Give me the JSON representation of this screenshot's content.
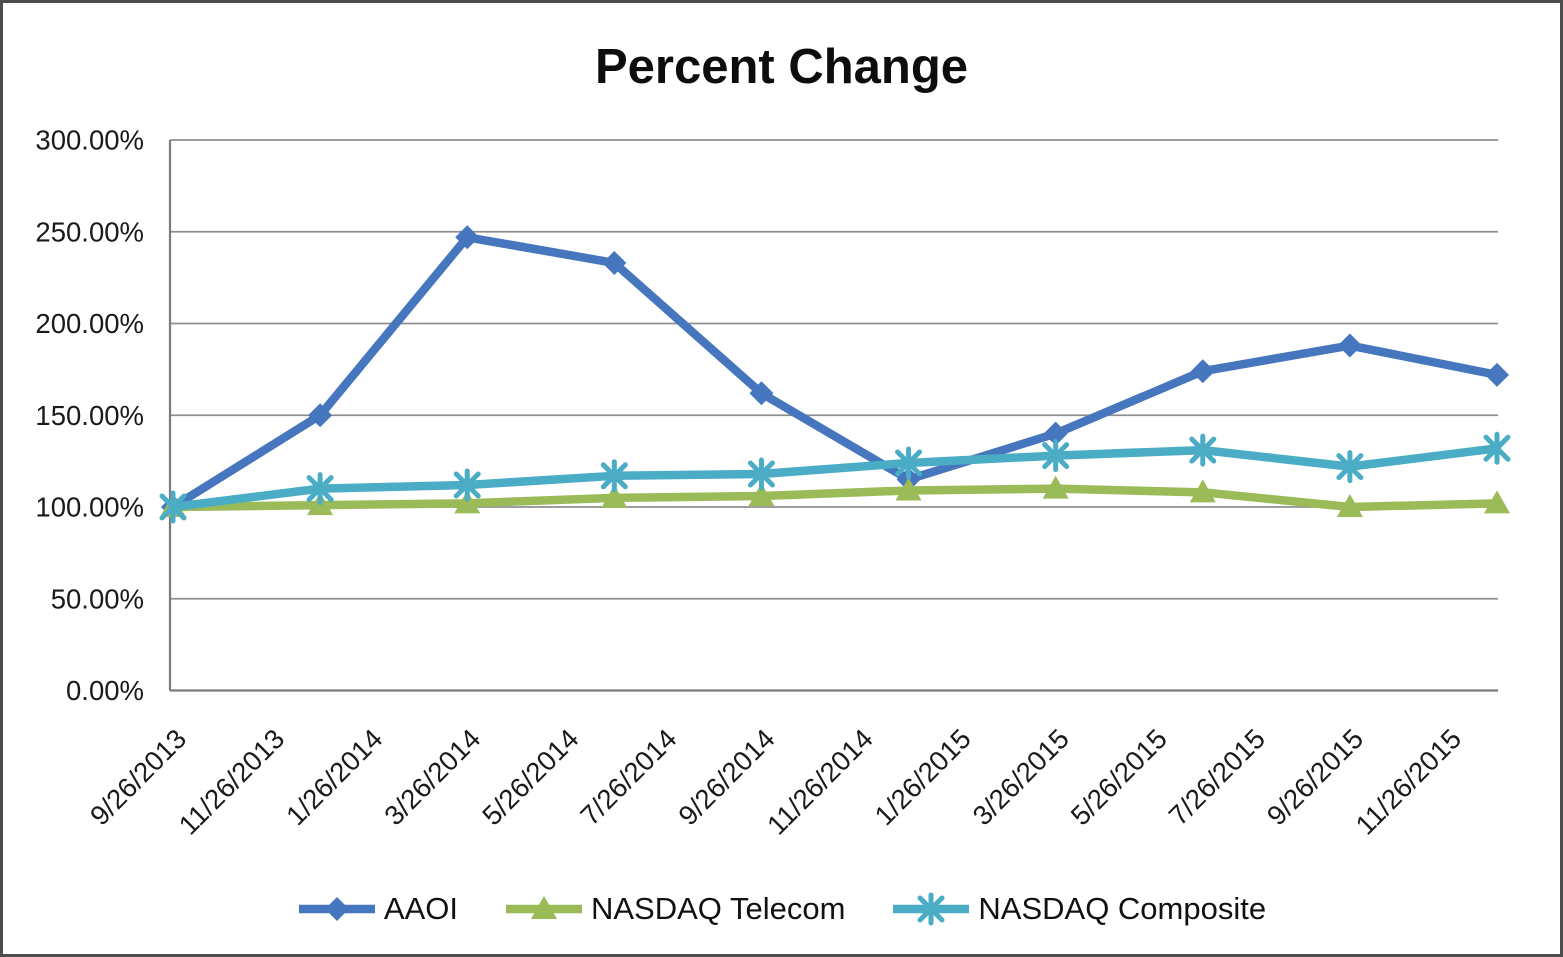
{
  "title": "Percent Change",
  "chart_data": {
    "type": "line",
    "title": "Percent Change",
    "x_axis": {
      "tick_labels": [
        "9/26/2013",
        "11/26/2013",
        "1/26/2014",
        "3/26/2014",
        "5/26/2014",
        "7/26/2014",
        "9/26/2014",
        "11/26/2014",
        "1/26/2015",
        "3/26/2015",
        "5/26/2015",
        "7/26/2015",
        "9/26/2015",
        "11/26/2015"
      ],
      "label_angle_degrees": 45
    },
    "y_axis": {
      "min": 0,
      "max": 300,
      "step": 50,
      "ticks": [
        {
          "value": 300,
          "label": "300.00%"
        },
        {
          "value": 250,
          "label": "250.00%"
        },
        {
          "value": 200,
          "label": "200.00%"
        },
        {
          "value": 150,
          "label": "150.00%"
        },
        {
          "value": 100,
          "label": "100.00%"
        },
        {
          "value": 50,
          "label": "50.00%"
        },
        {
          "value": 0,
          "label": "0.00%"
        }
      ]
    },
    "point_dates": [
      "9/26/2013",
      "12/26/2013",
      "3/26/2014",
      "6/26/2014",
      "9/26/2014",
      "12/26/2014",
      "3/26/2015",
      "6/26/2015",
      "9/26/2015",
      "12/26/2015"
    ],
    "series": [
      {
        "name": "AAOI",
        "marker": "diamond",
        "color": "#4576BE",
        "values": [
          100,
          150,
          247,
          233,
          162,
          115,
          140,
          174,
          188,
          172
        ]
      },
      {
        "name": "NASDAQ Telecom",
        "marker": "triangle",
        "color": "#9BBB59",
        "values": [
          100,
          101,
          102,
          105,
          106,
          109,
          110,
          108,
          100,
          102
        ]
      },
      {
        "name": "NASDAQ Composite",
        "marker": "asterisk",
        "color": "#4BACC6",
        "values": [
          100,
          110,
          112,
          117,
          118,
          124,
          128,
          131,
          122,
          132
        ]
      }
    ],
    "grid": true,
    "legend_position": "bottom",
    "style": {
      "gridline_color": "#8F8F8F",
      "axis_color": "#7A7A7A",
      "text_color": "#1A1A1A"
    }
  }
}
